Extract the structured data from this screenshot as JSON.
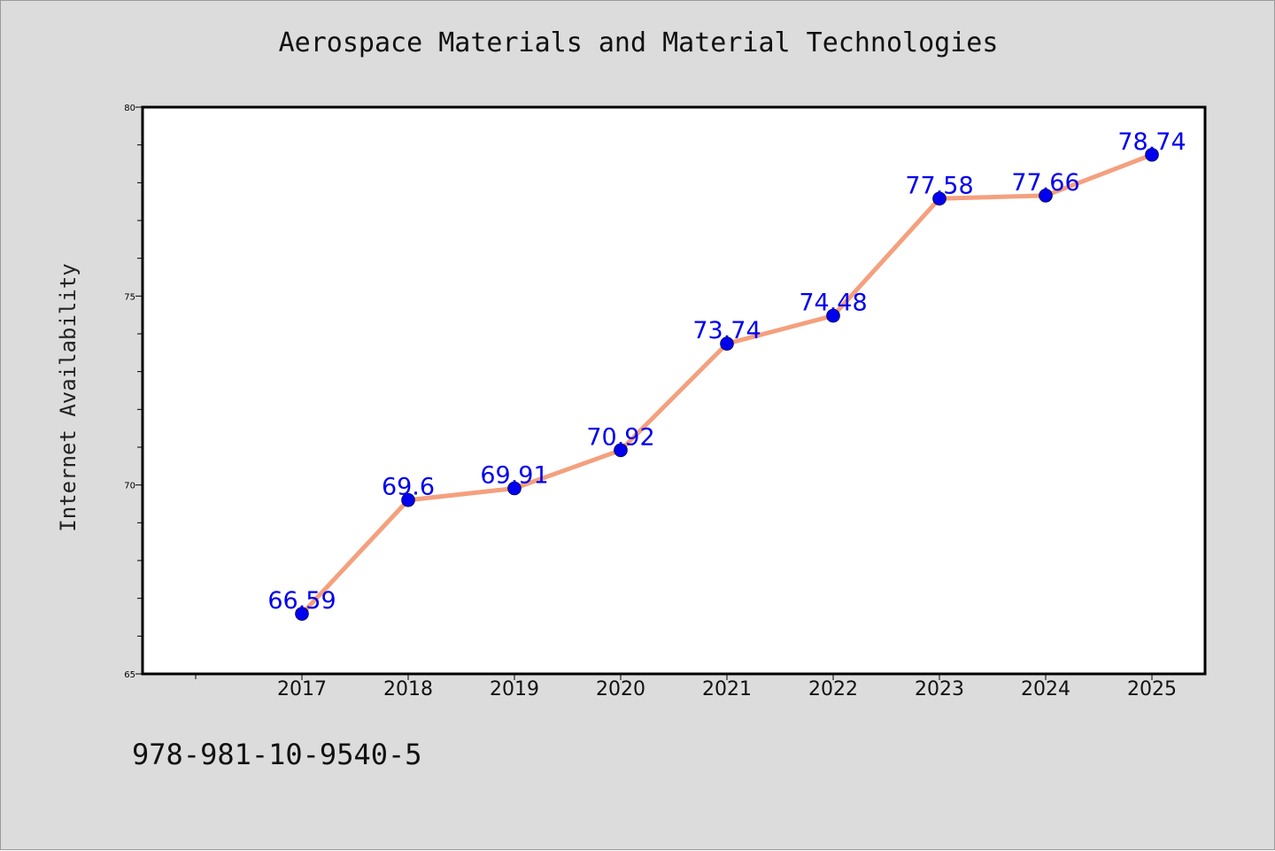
{
  "chart_data": {
    "type": "line",
    "title": "Aerospace Materials and Material Technologies",
    "xlabel": "",
    "ylabel": "Internet Availability",
    "categories": [
      "2017",
      "2018",
      "2019",
      "2020",
      "2021",
      "2022",
      "2023",
      "2024",
      "2025"
    ],
    "series": [
      {
        "values": [
          66.59,
          69.6,
          69.91,
          70.92,
          73.74,
          74.48,
          77.58,
          77.66,
          78.74
        ],
        "labels": [
          "66.59",
          "69.6",
          "69.91",
          "70.92",
          "73.74",
          "74.48",
          "77.58",
          "77.66",
          "78.74"
        ]
      }
    ],
    "ylim": [
      65,
      80
    ],
    "yticks": [
      "65",
      "70",
      "75",
      "80"
    ],
    "grid": false,
    "line_color": "#f4a07e",
    "marker_color": "#0000ee",
    "label_color": "#0000ee"
  },
  "footer_text": "978-981-10-9540-5"
}
